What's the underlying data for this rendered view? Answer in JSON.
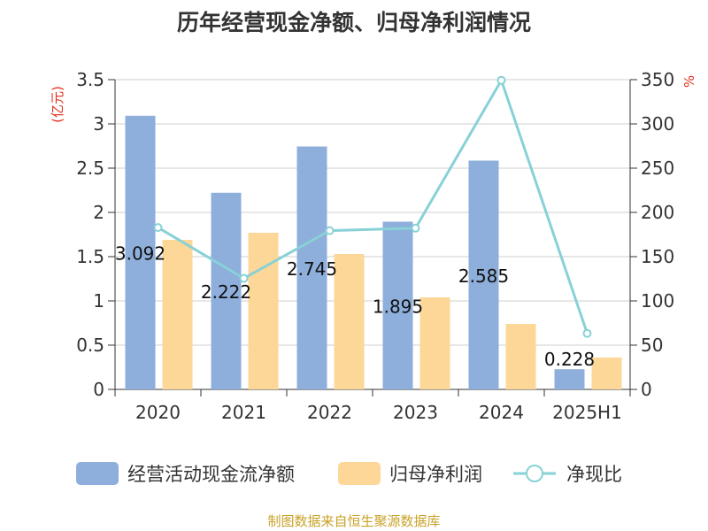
{
  "chart_data": {
    "type": "bar",
    "title": "历年经营现金净额、归母净利润情况",
    "categories": [
      "2020",
      "2021",
      "2022",
      "2023",
      "2024",
      "2025H1"
    ],
    "y_left": {
      "label": "(亿元)",
      "min": 0,
      "max": 3.5,
      "ticks": [
        "0",
        "0.5",
        "1",
        "1.5",
        "2",
        "2.5",
        "3",
        "3.5"
      ]
    },
    "y_right": {
      "label": "%",
      "min": 0,
      "max": 350,
      "ticks": [
        "0",
        "50",
        "100",
        "150",
        "200",
        "250",
        "300",
        "350"
      ]
    },
    "grid": true,
    "legend_position": "bottom",
    "series": [
      {
        "name": "经营活动现金流净额",
        "type": "bar",
        "axis": "left",
        "color": "#8eaedb",
        "values": [
          3.092,
          2.222,
          2.745,
          1.895,
          2.585,
          0.228
        ],
        "labels": [
          "3.092",
          "2.222",
          "2.745",
          "1.895",
          "2.585",
          "0.228"
        ]
      },
      {
        "name": "归母净利润",
        "type": "bar",
        "axis": "left",
        "color": "#fdd797",
        "values": [
          1.69,
          1.77,
          1.53,
          1.04,
          0.74,
          0.36
        ]
      },
      {
        "name": "净现比",
        "type": "line",
        "axis": "right",
        "color": "#88d1d6",
        "values": [
          182.9,
          125.5,
          179.4,
          182.2,
          349.3,
          63.3
        ]
      }
    ],
    "source": "制图数据来自恒生聚源数据库"
  }
}
